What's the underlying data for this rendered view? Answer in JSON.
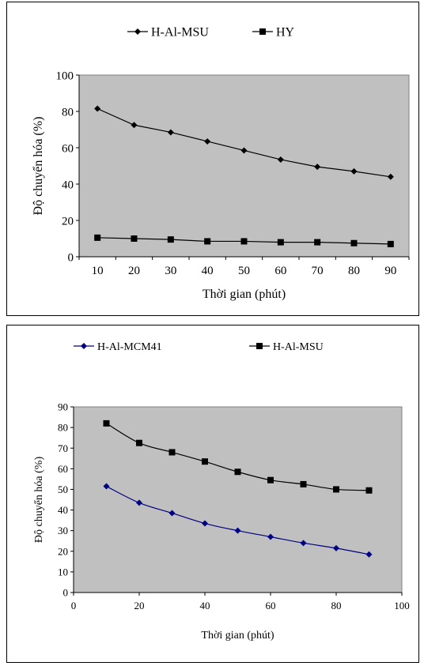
{
  "chart_data": [
    {
      "type": "line",
      "x_axis_type": "category",
      "categories": [
        "10",
        "20",
        "30",
        "40",
        "50",
        "60",
        "70",
        "80",
        "90"
      ],
      "series": [
        {
          "name": "H-Al-MSU",
          "marker": "diamond",
          "color": "#000000",
          "values": [
            81.5,
            72.5,
            68.5,
            63.5,
            58.5,
            53.5,
            49.5,
            47.0,
            44.0
          ]
        },
        {
          "name": "HY",
          "marker": "square",
          "color": "#000000",
          "values": [
            10.5,
            10.0,
            9.5,
            8.5,
            8.5,
            8.0,
            8.0,
            7.5,
            7.0
          ]
        }
      ],
      "xlabel": "Thời gian (phút)",
      "ylabel": "Độ chuyển hóa (%)",
      "ylim": [
        0,
        100
      ],
      "yticks": [
        "0",
        "20",
        "40",
        "60",
        "80",
        "100"
      ],
      "legend": "top",
      "plot_background": "#c0c0c0",
      "grid": false
    },
    {
      "type": "line",
      "x_axis_type": "numeric",
      "series": [
        {
          "name": "H-Al-MCM41",
          "marker": "diamond",
          "color": "#000080",
          "x": [
            10,
            20,
            30,
            40,
            50,
            60,
            70,
            80,
            90
          ],
          "values": [
            51.5,
            43.5,
            38.5,
            33.5,
            30.0,
            27.0,
            24.0,
            21.5,
            18.5
          ]
        },
        {
          "name": "H-Al-MSU",
          "marker": "square",
          "color": "#000000",
          "x": [
            10,
            20,
            30,
            40,
            50,
            60,
            70,
            80,
            90
          ],
          "values": [
            82.0,
            72.5,
            68.0,
            63.5,
            58.5,
            54.5,
            52.5,
            50.0,
            49.5
          ]
        }
      ],
      "xlabel": "Thời gian (phút)",
      "ylabel": "Độ chuyển hóa (%)",
      "xlim": [
        0,
        100
      ],
      "xticks": [
        "0",
        "20",
        "40",
        "60",
        "80",
        "100"
      ],
      "ylim": [
        0,
        90
      ],
      "yticks": [
        "0",
        "10",
        "20",
        "30",
        "40",
        "50",
        "60",
        "70",
        "80",
        "90"
      ],
      "legend": "top",
      "plot_background": "#c0c0c0",
      "grid": false,
      "smooth": true
    }
  ]
}
